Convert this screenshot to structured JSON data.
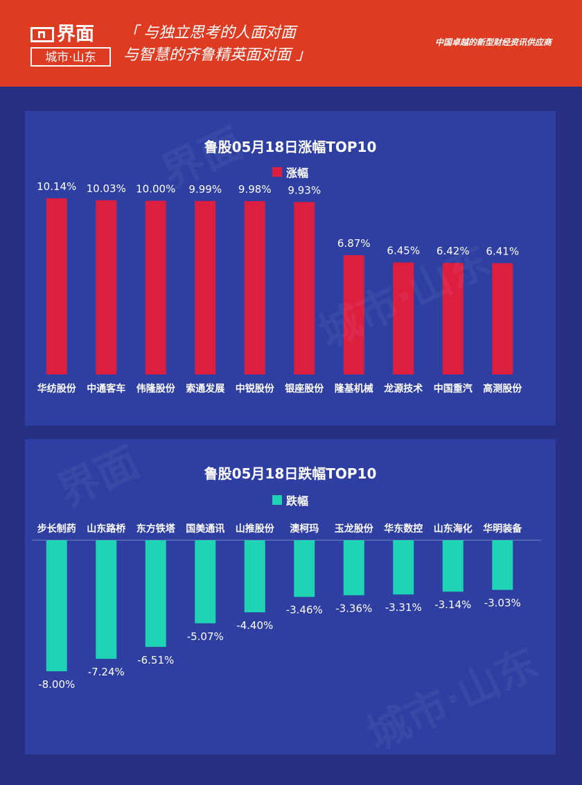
{
  "header": {
    "logo_title": "界面",
    "logo_subtitle": "城市·山东",
    "slogan_line1": "「 与独立思考的人面对面",
    "slogan_line2": "与智慧的齐鲁精英面对面 」",
    "provider": "中国卓越的新型财经资讯供应商"
  },
  "colors": {
    "header_bg": "#dd3c22",
    "page_bg": "#262f80",
    "panel_bg": "#2e3fa1",
    "gain_bar": "#dc1f41",
    "loss_bar": "#1fd3b5"
  },
  "chart_data": [
    {
      "type": "bar",
      "title": "鲁股05月18日涨幅TOP10",
      "legend": "涨幅",
      "categories": [
        "华纺股份",
        "中通客车",
        "伟隆股份",
        "索通发展",
        "中锐股份",
        "银座股份",
        "隆基机械",
        "龙源技术",
        "中国重汽",
        "高测股份"
      ],
      "values": [
        10.14,
        10.03,
        10.0,
        9.99,
        9.98,
        9.93,
        6.87,
        6.45,
        6.42,
        6.41
      ],
      "labels": [
        "10.14%",
        "10.03%",
        "10.00%",
        "9.99%",
        "9.98%",
        "9.93%",
        "6.87%",
        "6.45%",
        "6.42%",
        "6.41%"
      ],
      "ylim": [
        0,
        11
      ],
      "legend_position": "top-center"
    },
    {
      "type": "bar",
      "title": "鲁股05月18日跌幅TOP10",
      "legend": "跌幅",
      "categories": [
        "步长制药",
        "山东路桥",
        "东方铁塔",
        "国美通讯",
        "山推股份",
        "澳柯玛",
        "玉龙股份",
        "华东数控",
        "山东海化",
        "华明装备"
      ],
      "values": [
        -8.0,
        -7.24,
        -6.51,
        -5.07,
        -4.4,
        -3.46,
        -3.36,
        -3.31,
        -3.14,
        -3.03
      ],
      "labels": [
        "-8.00%",
        "-7.24%",
        "-6.51%",
        "-5.07%",
        "-4.40%",
        "-3.46%",
        "-3.36%",
        "-3.31%",
        "-3.14%",
        "-3.03%"
      ],
      "ylim": [
        -8.5,
        0
      ],
      "legend_position": "top-center"
    }
  ],
  "watermark": {
    "line1": "界面",
    "line2": "城市·山东"
  }
}
